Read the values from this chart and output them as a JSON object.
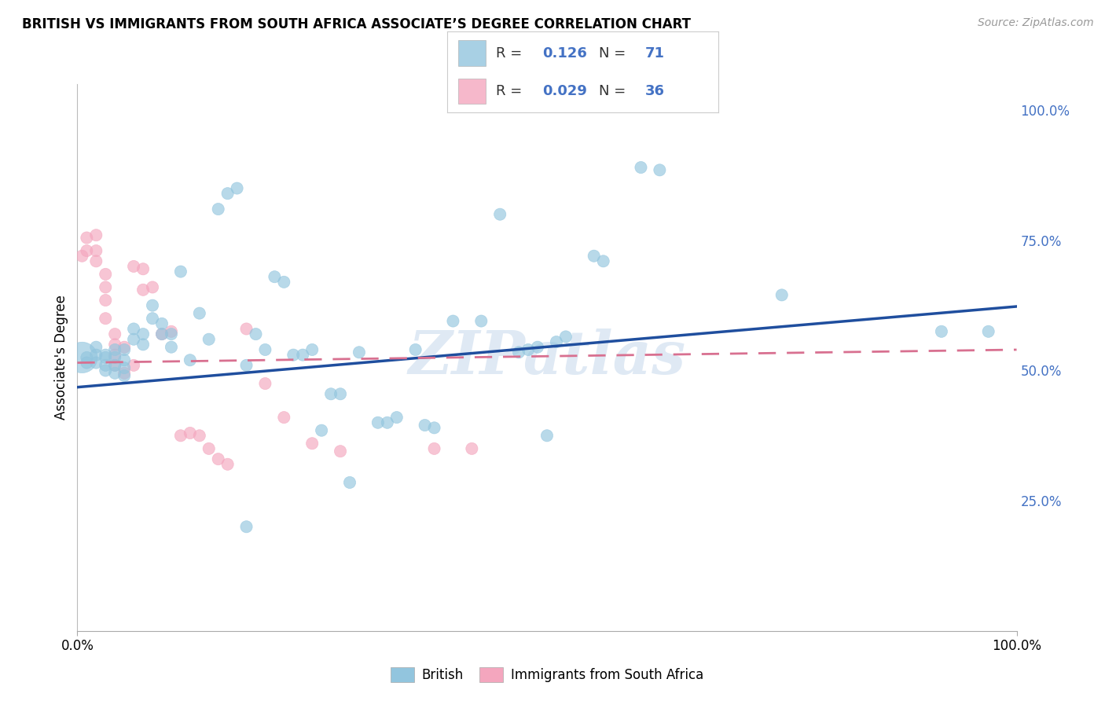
{
  "title": "BRITISH VS IMMIGRANTS FROM SOUTH AFRICA ASSOCIATE’S DEGREE CORRELATION CHART",
  "source": "Source: ZipAtlas.com",
  "ylabel": "Associate's Degree",
  "right_yticks": [
    "100.0%",
    "75.0%",
    "50.0%",
    "25.0%"
  ],
  "right_ytick_vals": [
    1.0,
    0.75,
    0.5,
    0.25
  ],
  "watermark": "ZIPatlas",
  "legend_blue_label": "British",
  "legend_pink_label": "Immigrants from South Africa",
  "blue_R": "0.126",
  "blue_N": "71",
  "pink_R": "0.029",
  "pink_N": "36",
  "blue_color": "#92c5de",
  "pink_color": "#f4a6be",
  "blue_line_color": "#1f4e9e",
  "pink_line_color": "#d87090",
  "blue_slope": 0.155,
  "blue_intercept": 0.468,
  "pink_slope": 0.025,
  "pink_intercept": 0.515,
  "blue_x": [
    0.005,
    0.01,
    0.01,
    0.02,
    0.02,
    0.02,
    0.03,
    0.03,
    0.03,
    0.03,
    0.04,
    0.04,
    0.04,
    0.04,
    0.05,
    0.05,
    0.05,
    0.05,
    0.06,
    0.06,
    0.07,
    0.07,
    0.08,
    0.08,
    0.09,
    0.09,
    0.1,
    0.1,
    0.11,
    0.12,
    0.13,
    0.14,
    0.15,
    0.16,
    0.17,
    0.18,
    0.19,
    0.2,
    0.21,
    0.22,
    0.23,
    0.24,
    0.26,
    0.27,
    0.28,
    0.3,
    0.32,
    0.34,
    0.36,
    0.38,
    0.4,
    0.43,
    0.45,
    0.47,
    0.49,
    0.5,
    0.51,
    0.52,
    0.55,
    0.56,
    0.6,
    0.62,
    0.75,
    0.92,
    0.97,
    0.18,
    0.25,
    0.29,
    0.33,
    0.37,
    0.48
  ],
  "blue_y": [
    0.525,
    0.525,
    0.515,
    0.545,
    0.53,
    0.515,
    0.525,
    0.53,
    0.51,
    0.5,
    0.54,
    0.525,
    0.51,
    0.495,
    0.54,
    0.52,
    0.505,
    0.49,
    0.58,
    0.56,
    0.57,
    0.55,
    0.625,
    0.6,
    0.59,
    0.57,
    0.57,
    0.545,
    0.69,
    0.52,
    0.61,
    0.56,
    0.81,
    0.84,
    0.85,
    0.51,
    0.57,
    0.54,
    0.68,
    0.67,
    0.53,
    0.53,
    0.385,
    0.455,
    0.455,
    0.535,
    0.4,
    0.41,
    0.54,
    0.39,
    0.595,
    0.595,
    0.8,
    0.535,
    0.545,
    0.375,
    0.555,
    0.565,
    0.72,
    0.71,
    0.89,
    0.885,
    0.645,
    0.575,
    0.575,
    0.2,
    0.54,
    0.285,
    0.4,
    0.395,
    0.54
  ],
  "blue_sizes": [
    800,
    120,
    120,
    120,
    120,
    120,
    120,
    120,
    120,
    120,
    120,
    120,
    120,
    120,
    120,
    120,
    120,
    120,
    120,
    120,
    120,
    120,
    120,
    120,
    120,
    120,
    120,
    120,
    120,
    120,
    120,
    120,
    120,
    120,
    120,
    120,
    120,
    120,
    120,
    120,
    120,
    120,
    120,
    120,
    120,
    120,
    120,
    120,
    120,
    120,
    120,
    120,
    120,
    120,
    120,
    120,
    120,
    120,
    120,
    120,
    120,
    120,
    120,
    120,
    120,
    120,
    120,
    120,
    120,
    120,
    120
  ],
  "pink_x": [
    0.005,
    0.01,
    0.01,
    0.02,
    0.02,
    0.02,
    0.03,
    0.03,
    0.03,
    0.03,
    0.04,
    0.04,
    0.04,
    0.05,
    0.05,
    0.06,
    0.07,
    0.07,
    0.08,
    0.09,
    0.1,
    0.11,
    0.12,
    0.13,
    0.14,
    0.15,
    0.16,
    0.18,
    0.2,
    0.22,
    0.25,
    0.28,
    0.38,
    0.42,
    0.04,
    0.06
  ],
  "pink_y": [
    0.72,
    0.755,
    0.73,
    0.76,
    0.73,
    0.71,
    0.685,
    0.66,
    0.635,
    0.6,
    0.57,
    0.55,
    0.53,
    0.545,
    0.495,
    0.7,
    0.695,
    0.655,
    0.66,
    0.57,
    0.575,
    0.375,
    0.38,
    0.375,
    0.35,
    0.33,
    0.32,
    0.58,
    0.475,
    0.41,
    0.36,
    0.345,
    0.35,
    0.35,
    0.51,
    0.51
  ],
  "pink_sizes": [
    120,
    120,
    120,
    120,
    120,
    120,
    120,
    120,
    120,
    120,
    120,
    120,
    120,
    120,
    120,
    120,
    120,
    120,
    120,
    120,
    120,
    120,
    120,
    120,
    120,
    120,
    120,
    120,
    120,
    120,
    120,
    120,
    120,
    120,
    120,
    120
  ],
  "xlim": [
    0.0,
    1.0
  ],
  "ylim": [
    0.0,
    1.05
  ],
  "xticks": [
    0.0,
    1.0
  ],
  "xticklabels": [
    "0.0%",
    "100.0%"
  ],
  "grid_color": "#cccccc",
  "background_color": "#ffffff",
  "right_tick_color": "#4472c4",
  "title_fontsize": 12,
  "source_color": "#999999"
}
